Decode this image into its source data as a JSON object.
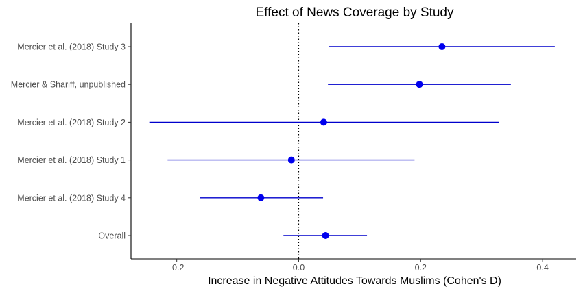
{
  "chart_data": {
    "type": "forest",
    "title": "Effect of News Coverage by Study",
    "xlabel": "Increase in Negative Attitudes Towards Muslims (Cohen's D)",
    "ylabel": "",
    "xlim": [
      -0.275,
      0.455
    ],
    "x_ticks": [
      -0.2,
      0.0,
      0.2,
      0.4
    ],
    "x_tick_labels": [
      "-0.2",
      "0.0",
      "0.2",
      "0.4"
    ],
    "reference_line": 0.0,
    "reference_line_style": "dotted",
    "grid": false,
    "legend": "none",
    "point_color": "#0000ee",
    "line_color": "#0000cc",
    "studies": [
      {
        "label": "Mercier et al. (2018) Study 3",
        "estimate": 0.235,
        "lower": 0.05,
        "upper": 0.42
      },
      {
        "label": "Mercier & Shariff, unpublished",
        "estimate": 0.198,
        "lower": 0.048,
        "upper": 0.348
      },
      {
        "label": "Mercier et al. (2018) Study 2",
        "estimate": 0.041,
        "lower": -0.245,
        "upper": 0.328
      },
      {
        "label": "Mercier et al. (2018) Study 1",
        "estimate": -0.012,
        "lower": -0.215,
        "upper": 0.19
      },
      {
        "label": "Mercier et al. (2018) Study 4",
        "estimate": -0.062,
        "lower": -0.162,
        "upper": 0.04
      },
      {
        "label": "Overall",
        "estimate": 0.044,
        "lower": -0.025,
        "upper": 0.112
      }
    ]
  }
}
